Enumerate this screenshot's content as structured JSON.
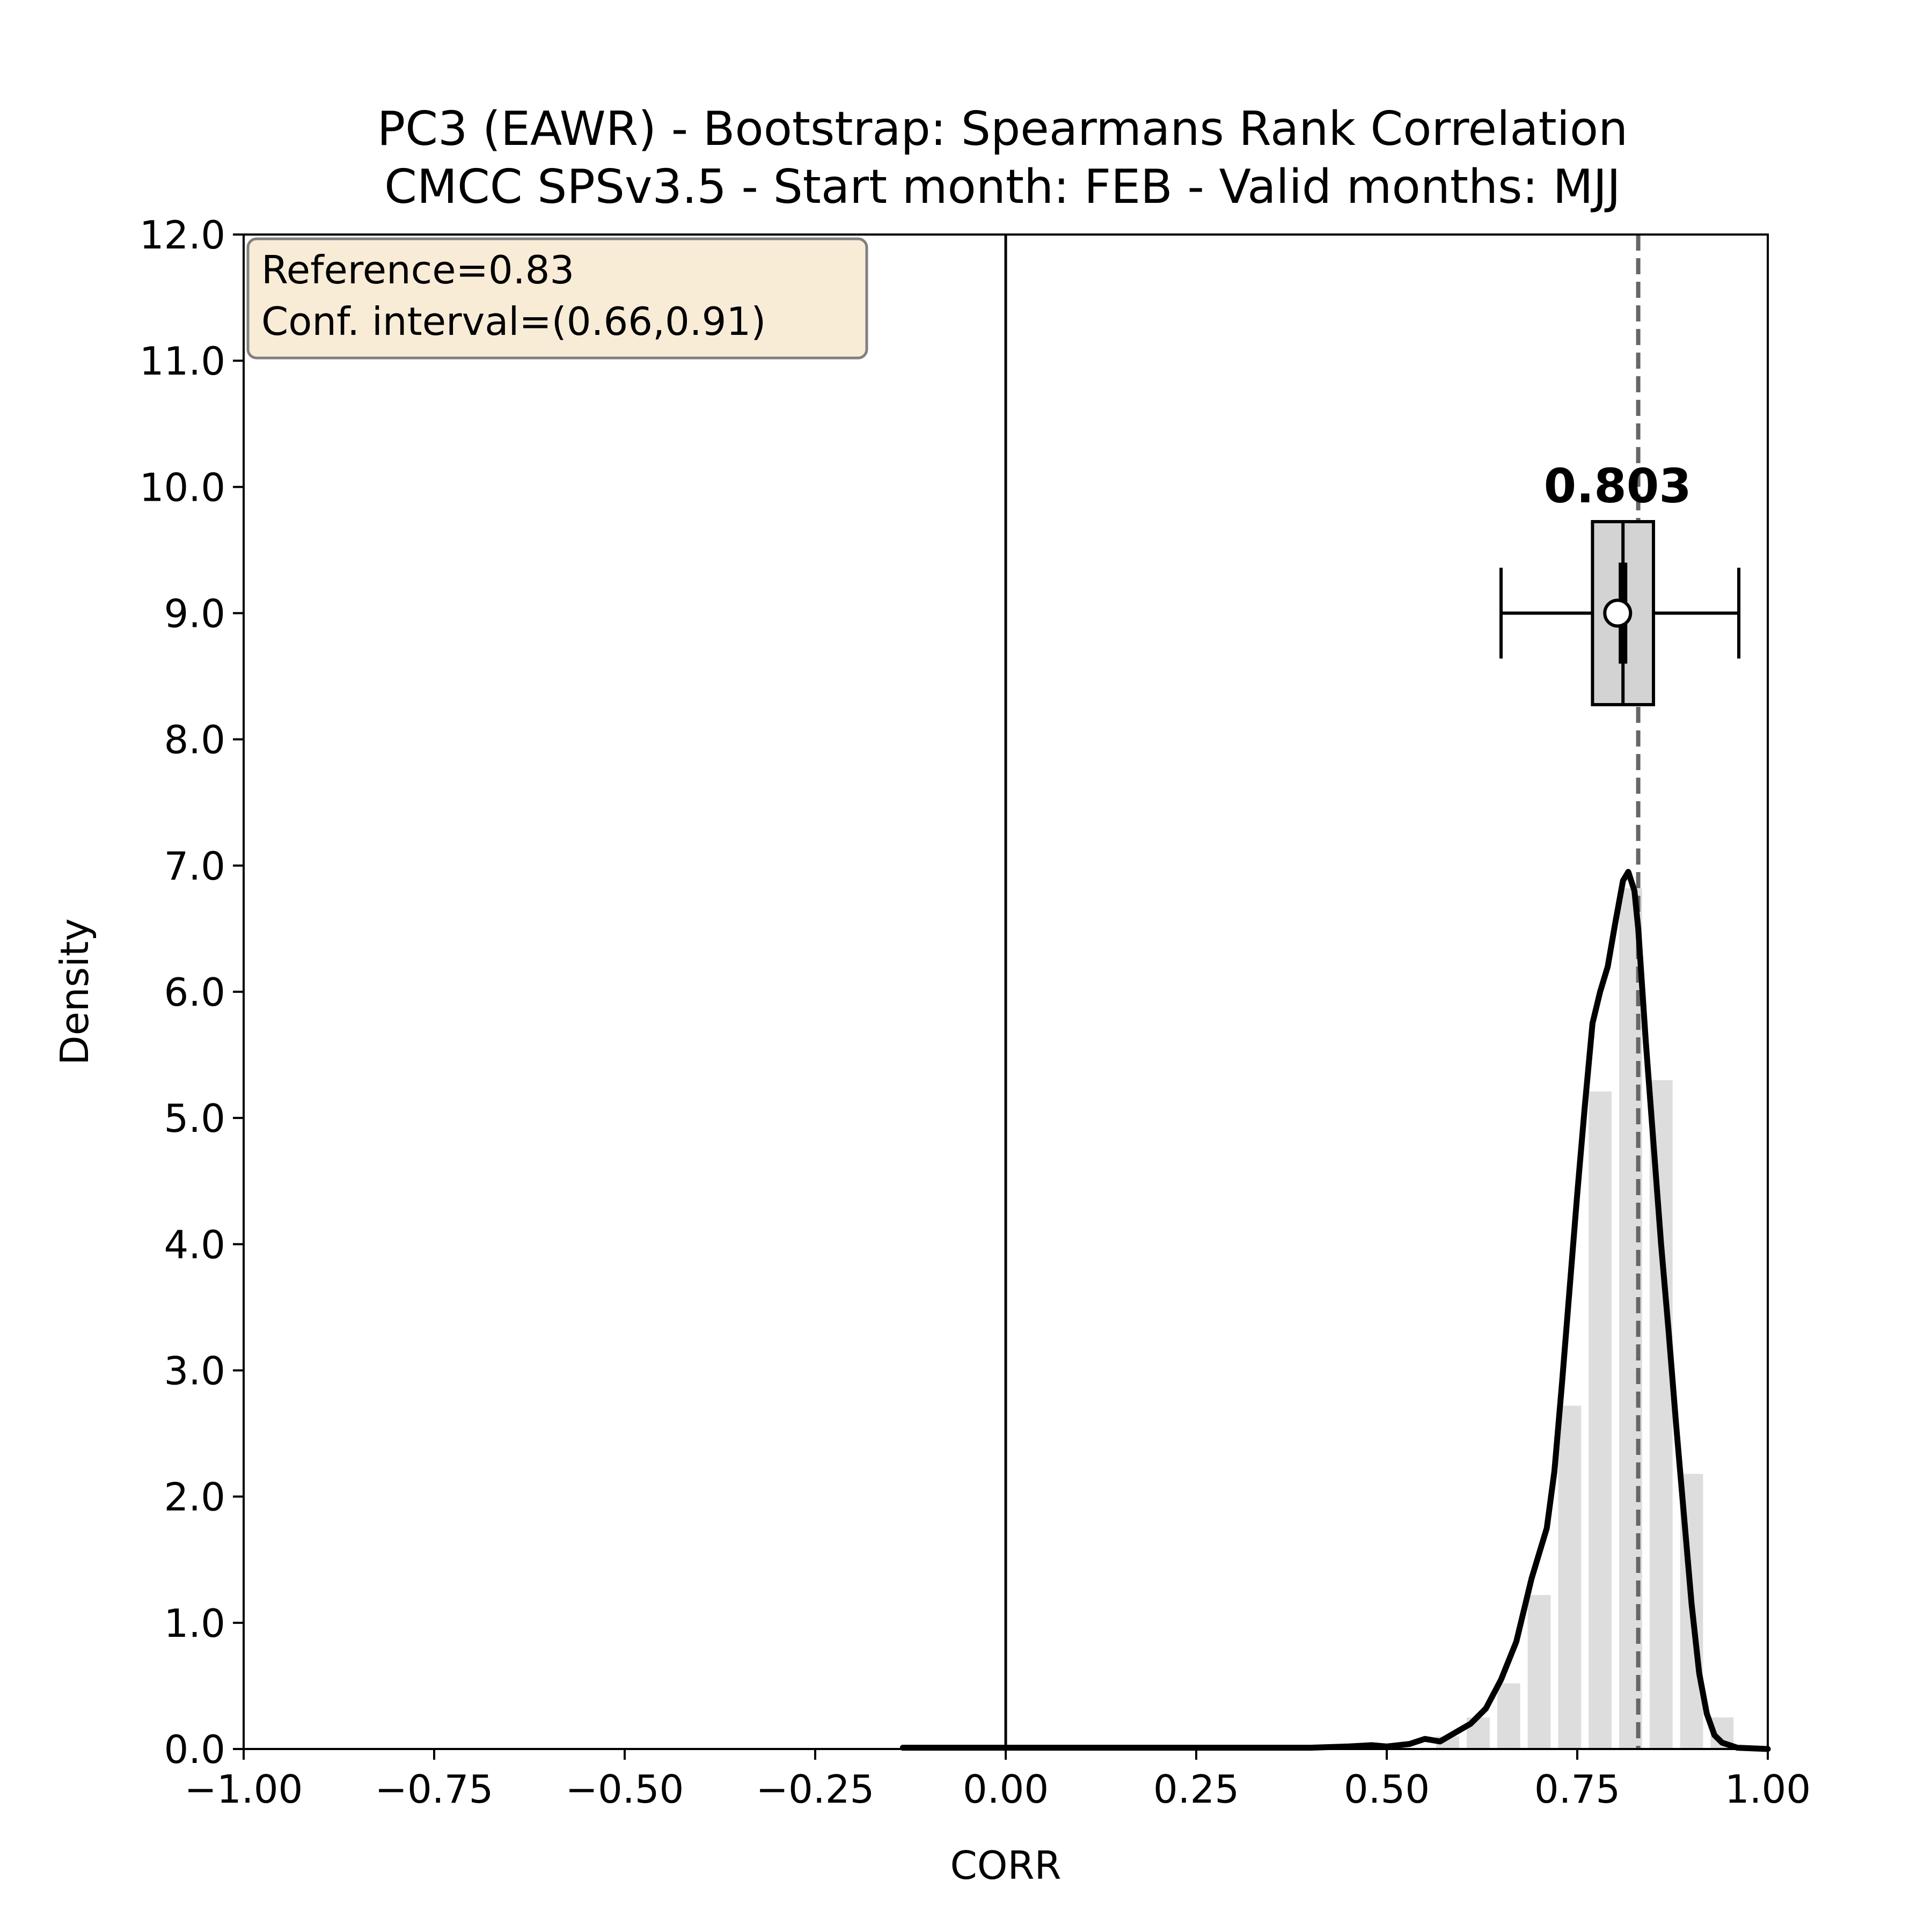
{
  "chart_data": {
    "type": "histogram",
    "title": "PC3 (EAWR) - Bootstrap: Spearmans Rank Correlation",
    "subtitle": "CMCC SPSv3.5 - Start month: FEB - Valid months: MJJ",
    "xlabel": "CORR",
    "ylabel": "Density",
    "xlim": [
      -1.0,
      1.0
    ],
    "ylim": [
      0.0,
      12.0
    ],
    "x_ticks": [
      "−1.00",
      "−0.75",
      "−0.50",
      "−0.25",
      "0.00",
      "0.25",
      "0.50",
      "0.75",
      "1.00"
    ],
    "y_ticks": [
      "0.0",
      "1.0",
      "2.0",
      "3.0",
      "4.0",
      "5.0",
      "6.0",
      "7.0",
      "8.0",
      "9.0",
      "10.0",
      "11.0",
      "12.0"
    ],
    "grid": false,
    "info_box": {
      "lines": [
        "Reference=0.83",
        "Conf. interval=(0.66,0.91)"
      ],
      "background": "#f8ecd7",
      "position": "top-left"
    },
    "histogram": {
      "bin_width": 0.04,
      "color": "#dddddd",
      "bins": [
        {
          "x0": 0.56,
          "x1": 0.6,
          "density": 0.1
        },
        {
          "x0": 0.6,
          "x1": 0.64,
          "density": 0.25
        },
        {
          "x0": 0.64,
          "x1": 0.68,
          "density": 0.52
        },
        {
          "x0": 0.68,
          "x1": 0.72,
          "density": 1.22
        },
        {
          "x0": 0.72,
          "x1": 0.76,
          "density": 2.72
        },
        {
          "x0": 0.76,
          "x1": 0.8,
          "density": 5.21
        },
        {
          "x0": 0.8,
          "x1": 0.84,
          "density": 6.82
        },
        {
          "x0": 0.84,
          "x1": 0.88,
          "density": 5.3
        },
        {
          "x0": 0.88,
          "x1": 0.92,
          "density": 2.18
        },
        {
          "x0": 0.92,
          "x1": 0.96,
          "density": 0.25
        }
      ]
    },
    "kde_curve": {
      "color": "#000000",
      "points": [
        [
          -0.135,
          0.01
        ],
        [
          0.0,
          0.01
        ],
        [
          0.2,
          0.01
        ],
        [
          0.3,
          0.01
        ],
        [
          0.4,
          0.01
        ],
        [
          0.45,
          0.02
        ],
        [
          0.48,
          0.03
        ],
        [
          0.5,
          0.02
        ],
        [
          0.53,
          0.04
        ],
        [
          0.55,
          0.08
        ],
        [
          0.57,
          0.06
        ],
        [
          0.59,
          0.13
        ],
        [
          0.61,
          0.2
        ],
        [
          0.63,
          0.32
        ],
        [
          0.65,
          0.55
        ],
        [
          0.67,
          0.85
        ],
        [
          0.69,
          1.35
        ],
        [
          0.71,
          1.75
        ],
        [
          0.72,
          2.2
        ],
        [
          0.73,
          2.9
        ],
        [
          0.74,
          3.65
        ],
        [
          0.75,
          4.4
        ],
        [
          0.76,
          5.1
        ],
        [
          0.77,
          5.75
        ],
        [
          0.78,
          6.0
        ],
        [
          0.79,
          6.2
        ],
        [
          0.8,
          6.55
        ],
        [
          0.81,
          6.88
        ],
        [
          0.817,
          6.95
        ],
        [
          0.825,
          6.8
        ],
        [
          0.83,
          6.5
        ],
        [
          0.84,
          5.6
        ],
        [
          0.85,
          4.8
        ],
        [
          0.86,
          4.0
        ],
        [
          0.87,
          3.3
        ],
        [
          0.88,
          2.55
        ],
        [
          0.89,
          1.85
        ],
        [
          0.9,
          1.15
        ],
        [
          0.91,
          0.6
        ],
        [
          0.92,
          0.28
        ],
        [
          0.93,
          0.11
        ],
        [
          0.94,
          0.05
        ],
        [
          0.96,
          0.01
        ],
        [
          1.0,
          0.0
        ]
      ]
    },
    "vertical_lines": [
      {
        "x": 0.0,
        "style": "solid",
        "color": "#000000"
      },
      {
        "x": 0.83,
        "style": "dashed",
        "color": "#666666"
      }
    ],
    "boxplot": {
      "y_center": 9.0,
      "height": 1.45,
      "whisker_low": 0.65,
      "q1": 0.77,
      "median": 0.81,
      "q3": 0.85,
      "whisker_high": 0.962,
      "mean": 0.803,
      "inner_bar_y_range": [
        8.6,
        9.4
      ],
      "fill": "#d3d3d3",
      "label": "0.803"
    }
  }
}
